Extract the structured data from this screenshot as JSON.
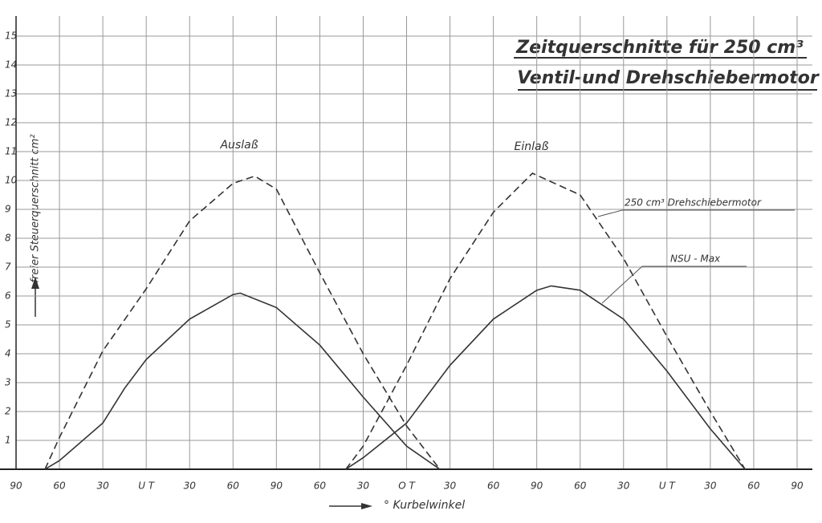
{
  "chart_data": {
    "type": "line",
    "title": "Zeitquerschnitte für 250 cm³",
    "subtitle": "Ventil-und Drehschiebermotor",
    "y_label": "freier Steuerquerschnitt cm²",
    "x_label": "° Kurbelwinkel",
    "annotations": [
      "Auslaß",
      "Einlaß"
    ],
    "xlim": [
      0,
      540
    ],
    "ylim": [
      0,
      15
    ],
    "xticks": [
      {
        "value": 0,
        "label": "90"
      },
      {
        "value": 30,
        "label": "60"
      },
      {
        "value": 60,
        "label": "30"
      },
      {
        "value": 90,
        "label": "U T"
      },
      {
        "value": 120,
        "label": "30"
      },
      {
        "value": 150,
        "label": "60"
      },
      {
        "value": 180,
        "label": "90"
      },
      {
        "value": 210,
        "label": "60"
      },
      {
        "value": 240,
        "label": "30"
      },
      {
        "value": 270,
        "label": "O T"
      },
      {
        "value": 300,
        "label": "30"
      },
      {
        "value": 330,
        "label": "60"
      },
      {
        "value": 360,
        "label": "90"
      },
      {
        "value": 390,
        "label": "60"
      },
      {
        "value": 420,
        "label": "30"
      },
      {
        "value": 450,
        "label": "U T"
      },
      {
        "value": 480,
        "label": "30"
      },
      {
        "value": 510,
        "label": "60"
      },
      {
        "value": 540,
        "label": "90"
      }
    ],
    "yticks": [
      1,
      2,
      3,
      4,
      5,
      6,
      7,
      8,
      9,
      10,
      11,
      12,
      13,
      14,
      15
    ],
    "grid": true,
    "series": [
      {
        "name": "250 cm³ Drehschiebermotor",
        "color": "#333",
        "dashed": true,
        "x": [
          20,
          30,
          60,
          90,
          120,
          150,
          165,
          180,
          210,
          240,
          270,
          293,
          null,
          228,
          240,
          270,
          300,
          330,
          357,
          390,
          420,
          450,
          480,
          504
        ],
        "values": [
          0,
          1.1,
          4.1,
          6.25,
          8.6,
          9.9,
          10.15,
          9.7,
          6.8,
          4.0,
          1.5,
          0,
          null,
          0,
          0.8,
          3.6,
          6.6,
          8.9,
          10.25,
          9.5,
          7.3,
          4.6,
          2.0,
          0
        ]
      },
      {
        "name": "NSU - Max",
        "color": "#333",
        "dashed": false,
        "x": [
          20,
          30,
          60,
          75,
          90,
          120,
          150,
          155,
          180,
          210,
          240,
          270,
          293,
          null,
          228,
          240,
          270,
          300,
          330,
          360,
          370,
          390,
          420,
          450,
          480,
          504
        ],
        "values": [
          0,
          0.3,
          1.6,
          2.8,
          3.8,
          5.2,
          6.05,
          6.1,
          5.6,
          4.3,
          2.5,
          0.8,
          0,
          null,
          0,
          0.4,
          1.6,
          3.6,
          5.2,
          6.2,
          6.35,
          6.2,
          5.2,
          3.4,
          1.4,
          0
        ]
      }
    ]
  }
}
